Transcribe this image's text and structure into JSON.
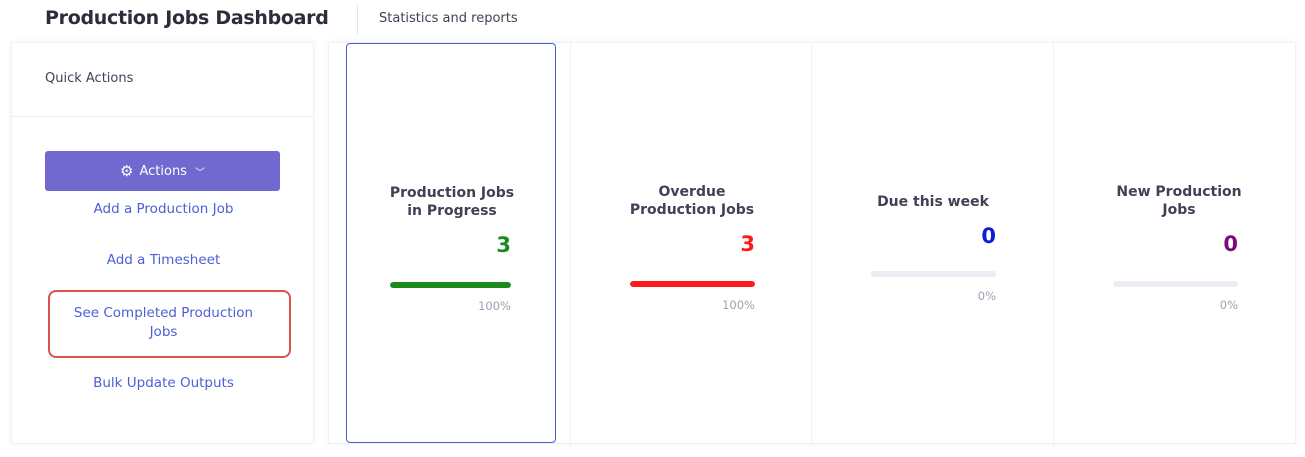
{
  "header": {
    "title": "Production Jobs Dashboard",
    "subtitle": "Statistics and reports"
  },
  "quick_actions": {
    "title": "Quick Actions",
    "actions_button": {
      "label": "Actions",
      "icon": "gear-icon",
      "caret": "chevron-down-icon"
    },
    "links": [
      "Add a Production Job",
      "Add a Timesheet",
      "See Completed Production Jobs",
      "Bulk Update Outputs"
    ]
  },
  "stats": [
    {
      "title": "Production Jobs in Progress",
      "value": "3",
      "percent_label": "100%",
      "percent": 100,
      "color": "#1a8a1a"
    },
    {
      "title": "Overdue Production Jobs",
      "value": "3",
      "percent_label": "100%",
      "percent": 100,
      "color": "#ff1a1a"
    },
    {
      "title": "Due this week",
      "value": "0",
      "percent_label": "0%",
      "percent": 0,
      "color": "#0a1ed6"
    },
    {
      "title": "New Production Jobs",
      "value": "0",
      "percent_label": "0%",
      "percent": 0,
      "color": "#7d0a7d"
    }
  ],
  "colors": {
    "accent": "#7269d0",
    "link": "#4c5fd6",
    "highlight": "#d9534f",
    "selected_border": "#4a5fc9"
  }
}
